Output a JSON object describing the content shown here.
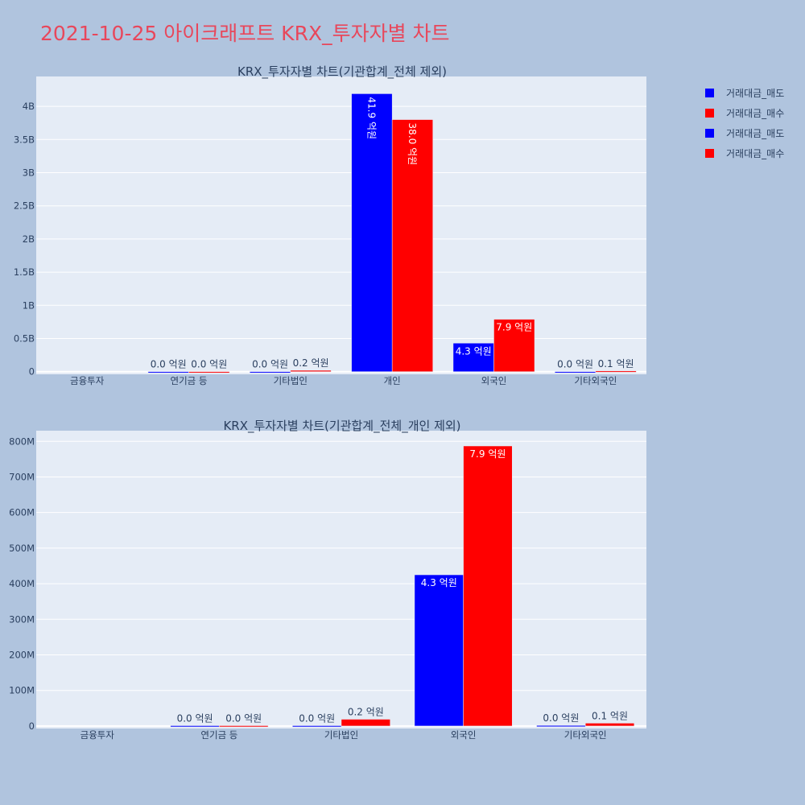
{
  "page_title": "2021-10-25 아이크래프트 KRX_투자자별 차트",
  "legend": [
    {
      "label": "거래대금_매도",
      "color": "#0000ff"
    },
    {
      "label": "거래대금_매수",
      "color": "#ff0000"
    },
    {
      "label": "거래대금_매도",
      "color": "#0000ff"
    },
    {
      "label": "거래대금_매수",
      "color": "#ff0000"
    }
  ],
  "chart_data": [
    {
      "type": "bar",
      "title": "KRX_투자자별 차트(기관합계_전체 제외)",
      "categories": [
        "금융투자",
        "연기금 등",
        "기타법인",
        "개인",
        "외국인",
        "기타외국인"
      ],
      "series": [
        {
          "name": "거래대금_매도",
          "color": "#0000ff",
          "values": [
            0,
            1000000,
            1000000,
            4190000000,
            430000000,
            1000000
          ],
          "labels": [
            "",
            "0.0 억원",
            "0.0 억원",
            "41.9 억원",
            "4.3 억원",
            "0.0 억원"
          ]
        },
        {
          "name": "거래대금_매수",
          "color": "#ff0000",
          "values": [
            0,
            1000000,
            20000000,
            3800000000,
            790000000,
            10000000
          ],
          "labels": [
            "",
            "0.0 억원",
            "0.2 억원",
            "38.0 억원",
            "7.9 억원",
            "0.1 억원"
          ]
        }
      ],
      "ylim": [
        -40000000,
        4450000000
      ],
      "yticks": [
        0,
        500000000,
        1000000000,
        1500000000,
        2000000000,
        2500000000,
        3000000000,
        3500000000,
        4000000000
      ],
      "ytick_labels": [
        "0",
        "0.5B",
        "1B",
        "1.5B",
        "2B",
        "2.5B",
        "3B",
        "3.5B",
        "4B"
      ],
      "grid": true
    },
    {
      "type": "bar",
      "title": "KRX_투자자별 차트(기관합계_전체_개인 제외)",
      "categories": [
        "금융투자",
        "연기금 등",
        "기타법인",
        "외국인",
        "기타외국인"
      ],
      "series": [
        {
          "name": "거래대금_매도",
          "color": "#0000ff",
          "values": [
            0,
            1000000,
            1000000,
            425000000,
            1500000
          ],
          "labels": [
            "",
            "0.0 억원",
            "0.0 억원",
            "4.3 억원",
            "0.0 억원"
          ]
        },
        {
          "name": "거래대금_매수",
          "color": "#ff0000",
          "values": [
            0,
            1000000,
            19000000,
            787000000,
            8000000
          ],
          "labels": [
            "",
            "0.0 억원",
            "0.2 억원",
            "7.9 억원",
            "0.1 억원"
          ]
        }
      ],
      "ylim": [
        -7000000,
        830000000
      ],
      "yticks": [
        0,
        100000000,
        200000000,
        300000000,
        400000000,
        500000000,
        600000000,
        700000000,
        800000000
      ],
      "ytick_labels": [
        "0",
        "100M",
        "200M",
        "300M",
        "400M",
        "500M",
        "600M",
        "700M",
        "800M"
      ],
      "grid": true
    }
  ]
}
